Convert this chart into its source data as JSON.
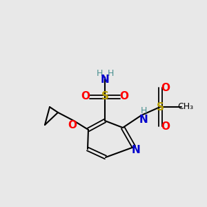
{
  "background_color": "#e8e8e8",
  "figsize": [
    3.0,
    3.0
  ],
  "dpi": 100,
  "colors": {
    "C": "#000000",
    "N": "#0000cc",
    "O": "#ff0000",
    "S": "#b8a000",
    "H": "#4a9090",
    "bond": "#000000"
  }
}
